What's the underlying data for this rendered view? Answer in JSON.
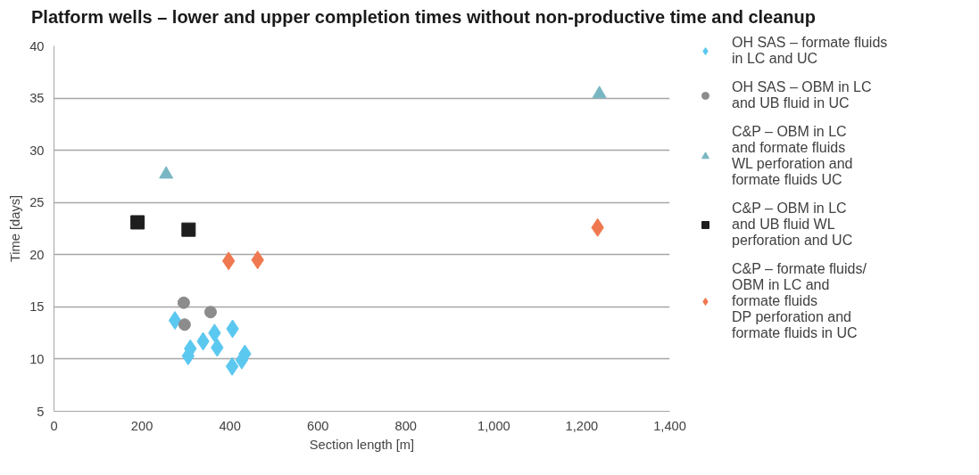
{
  "chart_data": {
    "type": "scatter",
    "title": "Platform wells – lower and upper completion times without non-productive time and cleanup",
    "xlabel": "Section length [m]",
    "ylabel": "Time [days]",
    "xlim": [
      0,
      1400
    ],
    "xticks": [
      0,
      200,
      400,
      600,
      800,
      {
        "value": 1000,
        "label": "1,000"
      },
      {
        "value": 1200,
        "label": "1,200"
      },
      {
        "value": 1400,
        "label": "1,400"
      }
    ],
    "ylim": [
      5,
      40
    ],
    "yticks": [
      5,
      10,
      15,
      20,
      25,
      30,
      35,
      40
    ],
    "grid": "y",
    "legend": "right",
    "series": [
      {
        "name": "OH SAS – formate fluids\nin LC and UC",
        "color": "#5bc8f0",
        "marker": "diamond",
        "x": [
          275,
          406,
          365,
          339,
          371,
          310,
          305,
          434,
          427,
          405
        ],
        "values": [
          13.7,
          12.9,
          12.5,
          11.7,
          11.1,
          11.0,
          10.3,
          10.5,
          9.9,
          9.3
        ]
      },
      {
        "name": "OH SAS – OBM in LC\nand UB fluid in UC",
        "color": "#8c8c8c",
        "marker": "circle",
        "x": [
          295,
          356,
          297
        ],
        "values": [
          15.4,
          14.5,
          13.3
        ]
      },
      {
        "name": "C&P – OBM in LC\nand formate fluids\nWL perforation and\nformate fluids UC",
        "color": "#79b6c4",
        "marker": "triangle",
        "x": [
          255,
          1240
        ],
        "values": [
          27.7,
          35.4
        ]
      },
      {
        "name": "C&P – OBM in LC\nand UB fluid WL\nperforation and UC",
        "color": "#1e1e1e",
        "marker": "square",
        "x": [
          190,
          306
        ],
        "values": [
          23.1,
          22.4
        ]
      },
      {
        "name": "C&P – formate fluids/\nOBM in LC and\nformate fluids\nDP perforation and\nformate fluids in UC",
        "color": "#f07850",
        "marker": "diamond",
        "x": [
          397,
          463,
          1236
        ],
        "values": [
          19.4,
          19.5,
          22.6
        ]
      }
    ]
  }
}
